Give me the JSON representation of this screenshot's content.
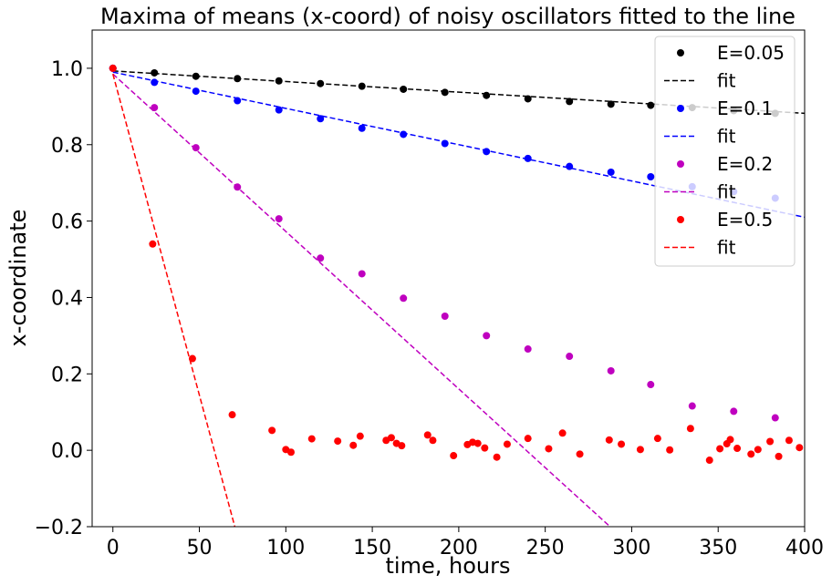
{
  "chart_data": {
    "type": "scatter",
    "title": "Maxima of means (x-coord) of noisy oscillators fitted to the line",
    "xlabel": "time, hours",
    "ylabel": "x-coordinate",
    "xlim": [
      -12,
      400
    ],
    "ylim": [
      -0.2,
      1.1
    ],
    "xticks": [
      0,
      50,
      100,
      150,
      200,
      250,
      300,
      350,
      400
    ],
    "yticks": [
      -0.2,
      0.0,
      0.2,
      0.4,
      0.6,
      0.8,
      1.0
    ],
    "xtick_labels": [
      "0",
      "50",
      "100",
      "150",
      "200",
      "250",
      "300",
      "350",
      "400"
    ],
    "ytick_labels": [
      "−0.2",
      "0.0",
      "0.2",
      "0.4",
      "0.6",
      "0.8",
      "1.0"
    ],
    "grid": false,
    "legend_position": "top-right",
    "series": [
      {
        "name": "E=0.05",
        "color": "#000000",
        "points": [
          [
            0,
            1.0
          ],
          [
            24,
            0.988
          ],
          [
            48,
            0.979
          ],
          [
            72,
            0.973
          ],
          [
            96,
            0.967
          ],
          [
            120,
            0.96
          ],
          [
            144,
            0.953
          ],
          [
            168,
            0.945
          ],
          [
            192,
            0.937
          ],
          [
            216,
            0.929
          ],
          [
            240,
            0.92
          ],
          [
            264,
            0.913
          ],
          [
            288,
            0.906
          ],
          [
            311,
            0.903
          ],
          [
            335,
            0.897
          ],
          [
            359,
            0.889
          ],
          [
            383,
            0.882
          ]
        ],
        "fit": {
          "label": "fit",
          "x": [
            0,
            400
          ],
          "y": [
            0.993,
            0.882
          ]
        }
      },
      {
        "name": "E=0.1",
        "color": "#0000ff",
        "points": [
          [
            0,
            1.0
          ],
          [
            24,
            0.963
          ],
          [
            48,
            0.94
          ],
          [
            72,
            0.915
          ],
          [
            96,
            0.891
          ],
          [
            120,
            0.868
          ],
          [
            144,
            0.843
          ],
          [
            168,
            0.827
          ],
          [
            192,
            0.803
          ],
          [
            216,
            0.782
          ],
          [
            240,
            0.764
          ],
          [
            264,
            0.743
          ],
          [
            288,
            0.728
          ],
          [
            311,
            0.716
          ],
          [
            335,
            0.69
          ],
          [
            359,
            0.677
          ],
          [
            383,
            0.66
          ]
        ],
        "fit": {
          "label": "fit",
          "x": [
            0,
            400
          ],
          "y": [
            0.99,
            0.61
          ]
        }
      },
      {
        "name": "E=0.2",
        "color": "#bf00bf",
        "points": [
          [
            0,
            1.0
          ],
          [
            24,
            0.897
          ],
          [
            48,
            0.792
          ],
          [
            72,
            0.689
          ],
          [
            96,
            0.606
          ],
          [
            120,
            0.503
          ],
          [
            144,
            0.462
          ],
          [
            168,
            0.398
          ],
          [
            192,
            0.351
          ],
          [
            216,
            0.3
          ],
          [
            240,
            0.265
          ],
          [
            264,
            0.246
          ],
          [
            288,
            0.208
          ],
          [
            311,
            0.172
          ],
          [
            335,
            0.116
          ],
          [
            359,
            0.102
          ],
          [
            383,
            0.085
          ]
        ],
        "fit": {
          "label": "fit",
          "x": [
            0,
            287.5
          ],
          "y": [
            0.985,
            -0.2
          ]
        }
      },
      {
        "name": "E=0.5",
        "color": "#ff0000",
        "points": [
          [
            0,
            1.0
          ],
          [
            23,
            0.54
          ],
          [
            46,
            0.24
          ],
          [
            69,
            0.093
          ],
          [
            92,
            0.052
          ],
          [
            100,
            0.002
          ],
          [
            103,
            -0.005
          ],
          [
            115,
            0.03
          ],
          [
            130,
            0.024
          ],
          [
            139,
            0.013
          ],
          [
            143,
            0.037
          ],
          [
            158,
            0.026
          ],
          [
            161,
            0.033
          ],
          [
            164,
            0.018
          ],
          [
            167,
            0.012
          ],
          [
            182,
            0.04
          ],
          [
            185,
            0.026
          ],
          [
            197,
            -0.014
          ],
          [
            205,
            0.015
          ],
          [
            208,
            0.021
          ],
          [
            211,
            0.018
          ],
          [
            215,
            0.006
          ],
          [
            222,
            -0.018
          ],
          [
            228,
            0.016
          ],
          [
            240,
            0.031
          ],
          [
            252,
            0.004
          ],
          [
            260,
            0.045
          ],
          [
            270,
            -0.01
          ],
          [
            287,
            0.027
          ],
          [
            294,
            0.016
          ],
          [
            305,
            0.002
          ],
          [
            315,
            0.031
          ],
          [
            322,
            0.001
          ],
          [
            334,
            0.057
          ],
          [
            345,
            -0.026
          ],
          [
            351,
            0.004
          ],
          [
            355,
            0.017
          ],
          [
            357,
            0.028
          ],
          [
            361,
            0.005
          ],
          [
            369,
            -0.01
          ],
          [
            373,
            0.002
          ],
          [
            380,
            0.023
          ],
          [
            385,
            -0.016
          ],
          [
            391,
            0.026
          ],
          [
            397,
            0.007
          ]
        ],
        "fit": {
          "label": "fit",
          "x": [
            0,
            70.5
          ],
          "y": [
            0.985,
            -0.2
          ]
        }
      }
    ]
  }
}
